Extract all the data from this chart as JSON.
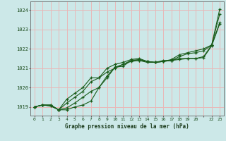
{
  "title": "Graphe pression niveau de la mer (hPa)",
  "bg_color": "#cce8e8",
  "grid_color": "#e8b8b8",
  "line_color": "#1a5c1a",
  "xlim": [
    -0.5,
    23.5
  ],
  "ylim": [
    1018.55,
    1024.45
  ],
  "yticks": [
    1019,
    1020,
    1021,
    1022,
    1023,
    1024
  ],
  "xtick_labels": [
    "0",
    "1",
    "2",
    "3",
    "4",
    "5",
    "6",
    "7",
    "8",
    "9",
    "10",
    "11",
    "12",
    "13",
    "14",
    "15",
    "16",
    "17",
    "18",
    "19",
    "20",
    "",
    "22",
    "23"
  ],
  "all_x": [
    0,
    1,
    2,
    3,
    4,
    5,
    6,
    7,
    8,
    9,
    10,
    11,
    12,
    13,
    14,
    15,
    16,
    17,
    18,
    19,
    20,
    21,
    22,
    23
  ],
  "series": [
    [
      1019.0,
      1019.1,
      1019.1,
      1018.85,
      1018.85,
      1019.0,
      1019.1,
      1019.3,
      1020.0,
      1020.6,
      1021.05,
      1021.1,
      1021.4,
      1021.4,
      1021.3,
      1021.3,
      1021.4,
      1021.4,
      1021.5,
      1021.5,
      1021.5,
      1021.6,
      1022.2,
      1023.8
    ],
    [
      1019.0,
      1019.1,
      1019.05,
      1018.85,
      1018.95,
      1019.2,
      1019.5,
      1019.8,
      1020.0,
      1020.5,
      1021.05,
      1021.2,
      1021.35,
      1021.4,
      1021.35,
      1021.3,
      1021.35,
      1021.4,
      1021.45,
      1021.5,
      1021.5,
      1021.55,
      1022.15,
      1023.3
    ],
    [
      1019.0,
      1019.1,
      1019.05,
      1018.85,
      1019.2,
      1019.5,
      1019.8,
      1020.3,
      1020.5,
      1020.8,
      1021.0,
      1021.2,
      1021.4,
      1021.45,
      1021.35,
      1021.3,
      1021.35,
      1021.4,
      1021.6,
      1021.75,
      1021.8,
      1021.9,
      1022.2,
      1024.05
    ],
    [
      1019.0,
      1019.1,
      1019.1,
      1018.85,
      1019.4,
      1019.7,
      1020.0,
      1020.5,
      1020.5,
      1021.0,
      1021.2,
      1021.3,
      1021.45,
      1021.5,
      1021.35,
      1021.3,
      1021.35,
      1021.45,
      1021.7,
      1021.8,
      1021.9,
      1022.0,
      1022.2,
      1023.35
    ]
  ]
}
